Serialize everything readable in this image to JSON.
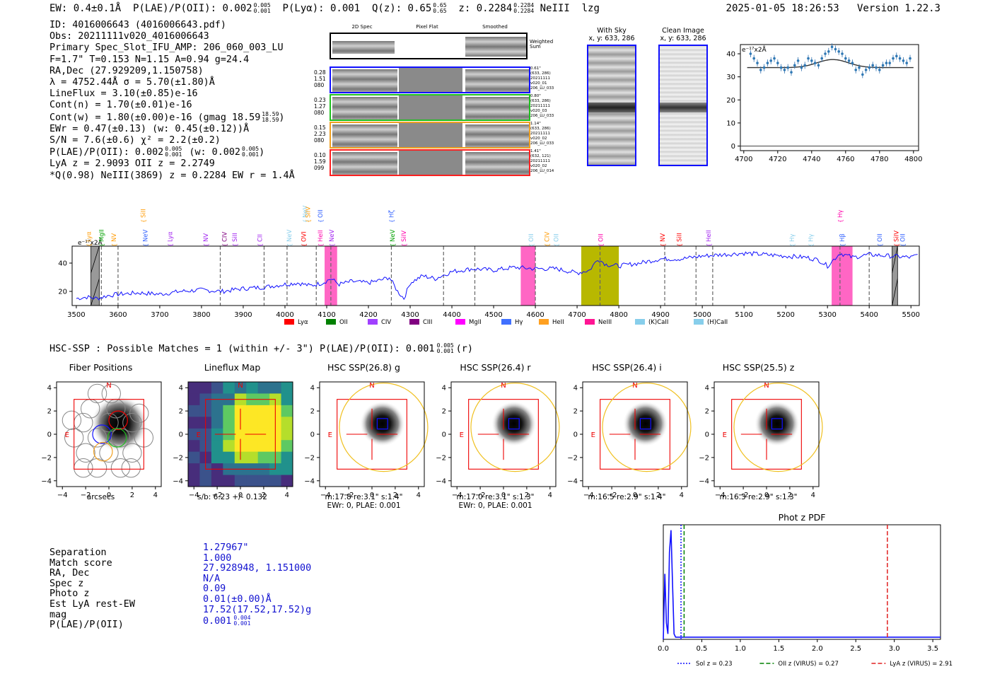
{
  "header": {
    "ew": "EW: 0.4±0.1Å",
    "plae_label": "P(LAE)/P(OII): 0.002",
    "plae_sup": "0.005",
    "plae_sub": "0.001",
    "plya": "P(Lyα): 0.001",
    "q_label": "Q(z): 0.65",
    "q_sup": "0.65",
    "q_sub": "0.65",
    "z_label": "z: 0.2284",
    "z_sup": "0.2284",
    "z_sub": "0.2284",
    "line": "NeIII",
    "user": "lzg",
    "timestamp": "2025-01-05 18:26:53",
    "version": "Version 1.22.3"
  },
  "info": {
    "lines": [
      "ID: 4016006643 (4016006643.pdf)",
      "Obs: 20211111v020_4016006643",
      "Primary Spec_Slot_IFU_AMP: 206_060_003_LU",
      "F=1.7\"  T=0.153  N=1.15  A=0.94  g=24.4",
      "RA,Dec (27.929209,1.150758)",
      "λ = 4752.44Å  σ = 5.70(±1.80)Å",
      "LineFlux = 3.10(±0.85)e-16",
      "Cont(n) = 1.70(±0.01)e-16"
    ],
    "cont_w": "Cont(w) = 1.80(±0.00)e-16 (gmag 18.59",
    "cont_w_sup": "18.59",
    "cont_w_sub": "18.59",
    "ewr": "EWr = 0.47(±0.13) (w: 0.45(±0.12))Å",
    "sn": "S/N = 7.6(±0.6)  χ² = 2.2(±0.2)",
    "plae_a": "P(LAE)/P(OII): 0.002",
    "plae_a_sup": "0.005",
    "plae_a_sub": "0.001",
    "plae_b": "(w: 0.002",
    "plae_b_sup": "0.005",
    "plae_b_sub": "0.001",
    "lya_z": "LyA z = 2.9093  OII z = 2.2749",
    "q_line": "*Q(0.98) NeIII(3869) z = 0.2284  EW r = 1.4Å"
  },
  "cutouts": {
    "col_labels": [
      "2D Spec",
      "Pixel Flat",
      "Smoothed"
    ],
    "weighted_label": "Weighted Sum",
    "rows": [
      {
        "left": [
          "0.28",
          "1.51",
          "080"
        ],
        "right": [
          "0.61\"",
          "(633, 286)",
          "20211111",
          "v020_01",
          "206_LU_033"
        ],
        "color": "#1010ff"
      },
      {
        "left": [
          "0.23",
          "1.27",
          "080"
        ],
        "right": [
          "0.80\"",
          "(633, 286)",
          "20211111",
          "v020_03",
          "206_LU_033"
        ],
        "color": "#20c020"
      },
      {
        "left": [
          "0.15",
          "2.23",
          "080"
        ],
        "right": [
          "1.14\"",
          "(633, 286)",
          "20211111",
          "v020_02",
          "206_LU_033"
        ],
        "color": "#f0a020"
      },
      {
        "left": [
          "0.10",
          "1.59",
          "099"
        ],
        "right": [
          "1.41\"",
          "(632, 121)",
          "20211111",
          "v020_02",
          "206_LU_014"
        ],
        "color": "#ff2020"
      }
    ],
    "with_sky": "With Sky",
    "with_sky_xy": "x, y: 633, 286",
    "clean": "Clean Image",
    "clean_xy": "x, y: 633, 286"
  },
  "zoom_chart": {
    "ylabel": "e⁻¹⁷x2Å",
    "xticks": [
      "4700",
      "4720",
      "4740",
      "4760",
      "4780",
      "4800"
    ],
    "yticks": [
      "0",
      "10",
      "20",
      "30",
      "40"
    ]
  },
  "chart_data": [
    {
      "type": "scatter",
      "title": "",
      "xlabel": "",
      "ylabel": "e-17x2Å",
      "xlim": [
        4698,
        4803
      ],
      "ylim": [
        -2,
        44
      ],
      "x": [
        4704,
        4706,
        4708,
        4710,
        4712,
        4714,
        4716,
        4718,
        4720,
        4722,
        4724,
        4726,
        4728,
        4730,
        4732,
        4734,
        4736,
        4738,
        4740,
        4742,
        4744,
        4746,
        4748,
        4750,
        4752,
        4754,
        4756,
        4758,
        4760,
        4762,
        4764,
        4766,
        4768,
        4770,
        4772,
        4774,
        4776,
        4778,
        4780,
        4782,
        4784,
        4786,
        4788,
        4790,
        4792,
        4794,
        4796,
        4798
      ],
      "y": [
        40,
        38,
        36,
        33,
        34,
        36,
        37,
        38,
        36,
        34,
        33,
        34,
        32,
        35,
        37,
        34,
        35,
        38,
        37,
        36,
        35,
        38,
        40,
        41,
        43,
        42,
        41,
        40,
        38,
        37,
        36,
        33,
        34,
        31,
        33,
        34,
        35,
        34,
        33,
        35,
        36,
        36,
        38,
        39,
        38,
        37,
        36,
        38
      ],
      "fit": {
        "continuum": 34,
        "peak_x": 4752.44,
        "amplitude": 3.5,
        "sigma": 5.7
      }
    },
    {
      "type": "line",
      "title": "",
      "xlabel": "",
      "ylabel": "e-17x2Å",
      "xlim": [
        3490,
        5520
      ],
      "ylim": [
        10,
        52
      ],
      "xticks": [
        3500,
        3600,
        3700,
        3800,
        3900,
        4000,
        4100,
        4200,
        4300,
        4400,
        4500,
        4600,
        4700,
        4800,
        4900,
        5000,
        5100,
        5200,
        5300,
        5400,
        5500
      ],
      "yticks": [
        20,
        40
      ],
      "x": [
        3500,
        3525,
        3550,
        3575,
        3600,
        3650,
        3700,
        3750,
        3800,
        3850,
        3900,
        3950,
        4000,
        4030,
        4060,
        4090,
        4110,
        4130,
        4160,
        4200,
        4230,
        4250,
        4270,
        4285,
        4300,
        4330,
        4360,
        4400,
        4450,
        4500,
        4550,
        4600,
        4650,
        4700,
        4730,
        4750,
        4770,
        4800,
        4850,
        4900,
        4950,
        5000,
        5050,
        5100,
        5150,
        5200,
        5250,
        5280,
        5300,
        5330,
        5360,
        5400,
        5450,
        5500,
        5520
      ],
      "y": [
        15,
        16,
        15,
        17,
        18,
        19,
        18,
        20,
        21,
        20,
        22,
        23,
        25,
        26,
        24,
        26,
        29,
        25,
        27,
        26,
        28,
        30,
        20,
        15,
        26,
        31,
        29,
        34,
        36,
        35,
        37,
        36,
        36,
        33,
        35,
        43,
        39,
        38,
        40,
        43,
        43,
        45,
        46,
        47,
        46,
        45,
        44,
        42,
        38,
        47,
        44,
        46,
        45,
        44,
        46
      ],
      "series_color": "#1010ff",
      "line_markers": [
        {
          "label": "Lyα",
          "x": 3530,
          "color": "#ff9a00",
          "row": 0
        },
        {
          "label": "MgII",
          "x": 3560,
          "color": "#00a000",
          "row": 0
        },
        {
          "label": "NV",
          "x": 3590,
          "color": "#ff9a00",
          "row": 0
        },
        {
          "label": "SiII",
          "x": 3660,
          "color": "#ff9a00",
          "row": 1
        },
        {
          "label": "NeV",
          "x": 3665,
          "color": "#3060ff",
          "row": 0
        },
        {
          "label": "Lyα",
          "x": 3725,
          "color": "#a020f0",
          "row": 0
        },
        {
          "label": "NV",
          "x": 3810,
          "color": "#a020f0",
          "row": 0
        },
        {
          "label": "CIV",
          "x": 3855,
          "color": "#800080",
          "row": 0
        },
        {
          "label": "SiII",
          "x": 3880,
          "color": "#a020f0",
          "row": 0
        },
        {
          "label": "CII",
          "x": 3940,
          "color": "#a020f0",
          "row": 0
        },
        {
          "label": "NeV",
          "x": 4010,
          "color": "#87ceeb",
          "row": 0
        },
        {
          "label": "OVI",
          "x": 4045,
          "color": "#ff0000",
          "row": 0
        },
        {
          "label": "NeV",
          "x": 4048,
          "color": "#87ceeb",
          "row": 1
        },
        {
          "label": "SiIV",
          "x": 4055,
          "color": "#ff9a00",
          "row": 1
        },
        {
          "label": "OII",
          "x": 4085,
          "color": "#3060ff",
          "row": 1
        },
        {
          "label": "HeII",
          "x": 4085,
          "color": "#ff00aa",
          "row": 0
        },
        {
          "label": "NeV",
          "x": 4112,
          "color": "#a020f0",
          "row": 0
        },
        {
          "label": "Hζ",
          "x": 4255,
          "color": "#3060ff",
          "row": 1
        },
        {
          "label": "NeV",
          "x": 4258,
          "color": "#00a000",
          "row": 0
        },
        {
          "label": "SiIV",
          "x": 4285,
          "color": "#ff00aa",
          "row": 0
        },
        {
          "label": "OII",
          "x": 4590,
          "color": "#87ceeb",
          "row": 0
        },
        {
          "label": "CIV",
          "x": 4628,
          "color": "#ff9a00",
          "row": 0
        },
        {
          "label": "OII",
          "x": 4650,
          "color": "#87ceeb",
          "row": 0
        },
        {
          "label": "OII",
          "x": 4757,
          "color": "#ff00aa",
          "row": 0
        },
        {
          "label": "NV",
          "x": 4905,
          "color": "#ff0000",
          "row": 0
        },
        {
          "label": "SiII",
          "x": 4945,
          "color": "#ff0000",
          "row": 0
        },
        {
          "label": "HeII",
          "x": 5015,
          "color": "#a020f0",
          "row": 0
        },
        {
          "label": "Hγ",
          "x": 5215,
          "color": "#87ceeb",
          "row": 0
        },
        {
          "label": "Hγ",
          "x": 5260,
          "color": "#87ceeb",
          "row": 0
        },
        {
          "label": "Hγ",
          "x": 5330,
          "color": "#ff00aa",
          "row": 1
        },
        {
          "label": "Hβ",
          "x": 5335,
          "color": "#3060ff",
          "row": 0
        },
        {
          "label": "OII",
          "x": 5425,
          "color": "#3060ff",
          "row": 0
        },
        {
          "label": "SiIV",
          "x": 5465,
          "color": "#ff0000",
          "row": 0
        },
        {
          "label": "OII",
          "x": 5480,
          "color": "#3060ff",
          "row": 0
        }
      ],
      "dashed_lines": [
        3560,
        3600,
        3845,
        3950,
        4005,
        4075,
        4110,
        4255,
        4380,
        4455,
        4600,
        4755,
        4910,
        4985,
        5025,
        5330,
        5400
      ],
      "bands": [
        {
          "from": 4095,
          "to": 4125,
          "color": "#ff66c4"
        },
        {
          "from": 4565,
          "to": 4600,
          "color": "#ff66c4"
        },
        {
          "from": 4710,
          "to": 4800,
          "color": "#b8b800"
        },
        {
          "from": 5310,
          "to": 5360,
          "color": "#ff66c4"
        }
      ],
      "masked": [
        {
          "from": 3535,
          "to": 3555
        },
        {
          "from": 5455,
          "to": 5468
        }
      ],
      "legend": [
        {
          "label": "Lyα",
          "color": "#ff0000"
        },
        {
          "label": "OII",
          "color": "#008000"
        },
        {
          "label": "CIV",
          "color": "#a040ff"
        },
        {
          "label": "CIII",
          "color": "#800080"
        },
        {
          "label": "MgII",
          "color": "#ff00ff"
        },
        {
          "label": "Hγ",
          "color": "#4070ff"
        },
        {
          "label": "HeII",
          "color": "#ffa020"
        },
        {
          "label": "NeIII",
          "color": "#ff1493"
        },
        {
          "label": "(K)CaII",
          "color": "#87ceeb"
        },
        {
          "label": "(H)CaII",
          "color": "#87ceeb"
        }
      ]
    },
    {
      "type": "line",
      "title": "Phot z PDF",
      "xlabel": "",
      "ylabel": "",
      "xlim": [
        0.0,
        3.6
      ],
      "ylim": [
        0,
        1.05
      ],
      "xticks": [
        0.0,
        0.5,
        1.0,
        1.5,
        2.0,
        2.5,
        3.0,
        3.5
      ],
      "x": [
        0.0,
        0.02,
        0.04,
        0.06,
        0.08,
        0.1,
        0.12,
        0.14,
        0.16,
        0.18,
        0.2,
        0.25,
        0.3,
        0.5,
        1.0,
        2.0,
        3.0,
        3.6
      ],
      "y": [
        0.0,
        0.6,
        0.15,
        0.05,
        0.8,
        1.0,
        0.5,
        0.05,
        0.02,
        0.02,
        0.02,
        0.02,
        0.02,
        0.02,
        0.02,
        0.02,
        0.02,
        0.02
      ],
      "vlines": [
        {
          "label": "Sol z = 0.23",
          "x": 0.23,
          "color": "#1010ff",
          "style": "dotted"
        },
        {
          "label": "OII z (VIRUS) = 0.27",
          "x": 0.27,
          "color": "#008000",
          "style": "dashed"
        },
        {
          "label": "LyA z (VIRUS) = 2.91",
          "x": 2.91,
          "color": "#e02020",
          "style": "dashed"
        }
      ]
    }
  ],
  "hsc": {
    "title": "HSC-SSP : Possible Matches = 1 (within +/- 3\")  P(LAE)/P(OII): 0.001",
    "sup": "0.005",
    "sub": "0.001",
    "suffix": "(r)"
  },
  "panels": [
    {
      "title": "Fiber Positions",
      "caption1": "arcsecs",
      "caption2": "",
      "kind": "fiber"
    },
    {
      "title": "Lineflux Map",
      "caption1": "s/b: 6.23 +/- 0.132",
      "caption2": "",
      "kind": "flux"
    },
    {
      "title": "HSC SSP(26.8) g",
      "caption1": "m:17.8  re:3.1\"  s:1.4\"",
      "caption2": "EWr: 0, PLAE: 0.001",
      "kind": "hsc"
    },
    {
      "title": "HSC SSP(26.4) r",
      "caption1": "m:17.0  re:3.1\"  s:1.3\"",
      "caption2": "EWr: 0, PLAE: 0.001",
      "kind": "hsc"
    },
    {
      "title": "HSC SSP(26.4) i",
      "caption1": "m:16.5  re:2.9\"  s:1.4\"",
      "caption2": "",
      "kind": "hsc"
    },
    {
      "title": "HSC SSP(25.5) z",
      "caption1": "m:16.3  re:2.9\"  s:1.3\"",
      "caption2": "",
      "kind": "hsc"
    }
  ],
  "panel_axis": {
    "xticks": [
      "−4",
      "−2",
      "0",
      "2",
      "4"
    ],
    "yticks": [
      "4",
      "2",
      "0",
      "−2",
      "−4"
    ],
    "north": "N",
    "east": "E"
  },
  "match": {
    "labels": [
      "Separation",
      "Match score",
      "RA, Dec",
      "Spec z",
      "Photo z",
      "Est LyA rest-EW",
      "mag",
      "P(LAE)/P(OII)"
    ],
    "values": [
      "1.27967\"",
      "1.000",
      "27.928948, 1.151000",
      "N/A",
      "0.09",
      "0.01(±0.00)Å",
      "17.52(17.52,17.52)g"
    ],
    "plae": "0.001",
    "plae_sup": "0.004",
    "plae_sub": "0.001"
  }
}
